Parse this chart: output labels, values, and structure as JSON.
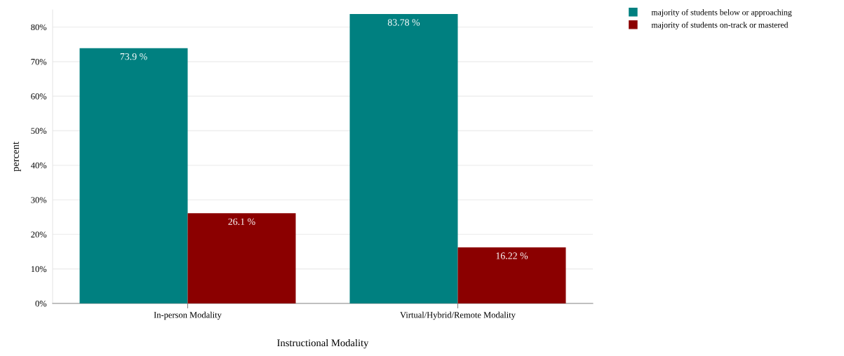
{
  "chart_data": {
    "type": "bar",
    "xlabel": "Instructional Modality",
    "ylabel": "percent",
    "categories": [
      "In-person Modality",
      "Virtual/Hybrid/Remote Modality"
    ],
    "series": [
      {
        "name": "majority of students below or approaching",
        "color": "#008080",
        "values": [
          73.9,
          83.78
        ],
        "value_labels": [
          "73.9 %",
          "83.78 %"
        ]
      },
      {
        "name": "majority of students on-track or mastered",
        "color": "#8b0000",
        "values": [
          26.1,
          16.22
        ],
        "value_labels": [
          "26.1 %",
          "16.22 %"
        ]
      }
    ],
    "ylim": [
      0,
      85
    ],
    "yticks": [
      {
        "value": 0,
        "label": "0%"
      },
      {
        "value": 10,
        "label": "10%"
      },
      {
        "value": 20,
        "label": "20%"
      },
      {
        "value": 30,
        "label": "30%"
      },
      {
        "value": 40,
        "label": "40%"
      },
      {
        "value": 50,
        "label": "50%"
      },
      {
        "value": 60,
        "label": "60%"
      },
      {
        "value": 70,
        "label": "70%"
      },
      {
        "value": 80,
        "label": "80%"
      }
    ],
    "grid": "y",
    "legend": "top right"
  }
}
